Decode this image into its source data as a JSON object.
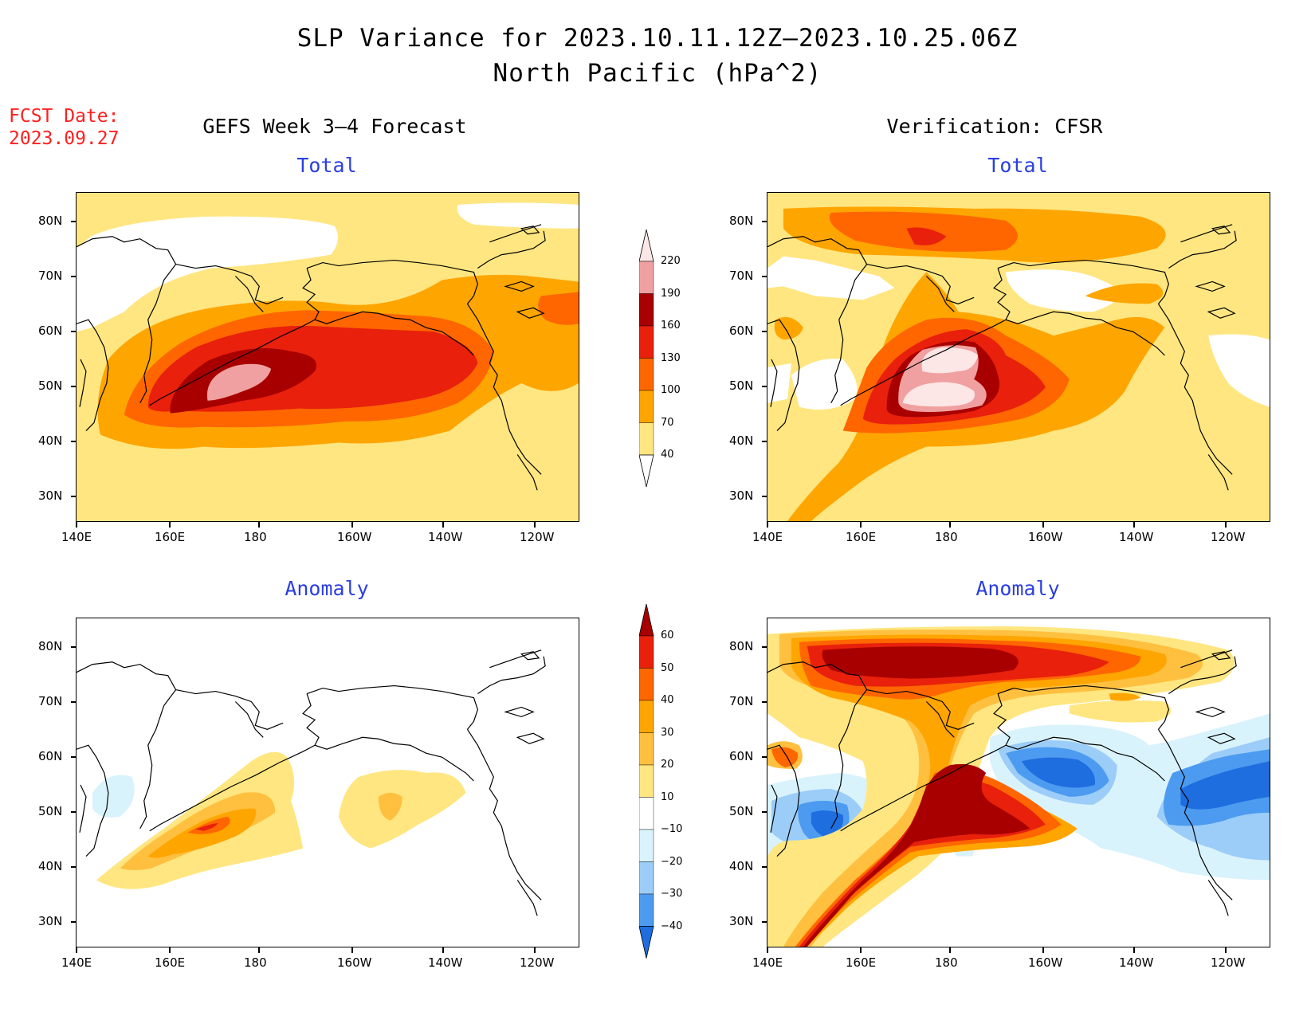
{
  "title": {
    "line1": "SLP Variance for 2023.10.11.12Z–2023.10.25.06Z",
    "line2": "North Pacific (hPa^2)"
  },
  "fcst": {
    "line1": "FCST Date:",
    "line2": "2023.09.27"
  },
  "left_header": "GEFS Week 3–4 Forecast",
  "right_header": "Verification: CFSR",
  "panels": {
    "total_label": "Total",
    "anomaly_label": "Anomaly"
  },
  "axes": {
    "lat_labels": [
      "80N",
      "70N",
      "60N",
      "50N",
      "40N",
      "30N"
    ],
    "lon_labels": [
      "140E",
      "160E",
      "180",
      "160W",
      "140W",
      "120W"
    ]
  },
  "colorbars": {
    "total": {
      "levels": [
        "40",
        "70",
        "100",
        "130",
        "160",
        "190",
        "220"
      ],
      "colors": [
        "#ffe680",
        "#ffa500",
        "#ff6600",
        "#e8200c",
        "#a80000",
        "#f0a0a0",
        "#fde6e6"
      ]
    },
    "anomaly": {
      "levels": [
        "−40",
        "−30",
        "−20",
        "−10",
        "10",
        "20",
        "30",
        "40",
        "50",
        "60"
      ],
      "colors": [
        "#1e6ee0",
        "#4c9bf0",
        "#9ccdf8",
        "#d9f3fc",
        "#ffffff",
        "#ffe680",
        "#ffc040",
        "#ffa500",
        "#ff6600",
        "#e8200c",
        "#a80000"
      ]
    }
  },
  "chart_data": [
    {
      "type": "heatmap",
      "title": "GEFS Week 3–4 Forecast – Total",
      "units": "hPa^2",
      "peak": "190–220 near 180/50N"
    },
    {
      "type": "heatmap",
      "title": "Verification: CFSR – Total",
      "units": "hPa^2",
      "peak": ">220 near 175W/45–52N"
    },
    {
      "type": "heatmap",
      "title": "GEFS Week 3–4 Forecast – Anomaly",
      "units": "hPa^2",
      "peak": "40–50 near 170E/48N"
    },
    {
      "type": "heatmap",
      "title": "Verification: CFSR – Anomaly",
      "units": "hPa^2",
      "peak": ">60 Aleutians and Arctic; −40 Gulf of Alaska"
    }
  ]
}
